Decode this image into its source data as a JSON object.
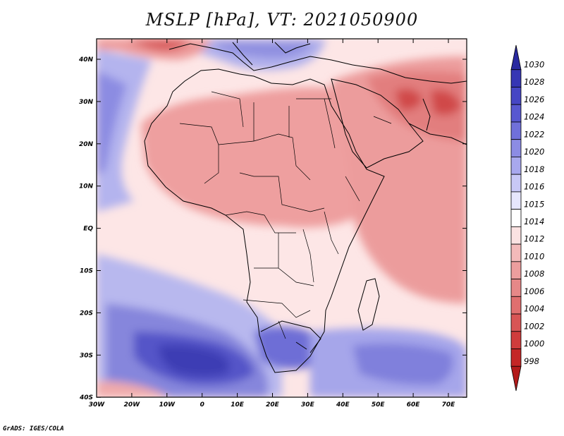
{
  "title": "MSLP [hPa], VT: 2021050900",
  "footer": "GrADS: IGES/COLA",
  "map": {
    "lon_labels": [
      "30W",
      "20W",
      "10W",
      "0",
      "10E",
      "20E",
      "30E",
      "40E",
      "50E",
      "60E",
      "70E"
    ],
    "lat_labels": [
      "40N",
      "30N",
      "20N",
      "10N",
      "EQ",
      "10S",
      "20S",
      "30S",
      "40S"
    ]
  },
  "colorbar": {
    "labels": [
      "1030",
      "1028",
      "1026",
      "1024",
      "1022",
      "1020",
      "1018",
      "1016",
      "1015",
      "1014",
      "1012",
      "1010",
      "1008",
      "1006",
      "1004",
      "1002",
      "1000",
      "998"
    ],
    "colors": [
      "#2a2aa0",
      "#3636b4",
      "#4646c4",
      "#5858d0",
      "#7070da",
      "#8c8ce4",
      "#a8a8ee",
      "#c8c8f6",
      "#e6e6fc",
      "#ffffff",
      "#fbe2e2",
      "#f3baba",
      "#ec9e9e",
      "#e68888",
      "#e06f6f",
      "#d85555",
      "#cf3c3c",
      "#c42626",
      "#b31b1b"
    ]
  }
}
